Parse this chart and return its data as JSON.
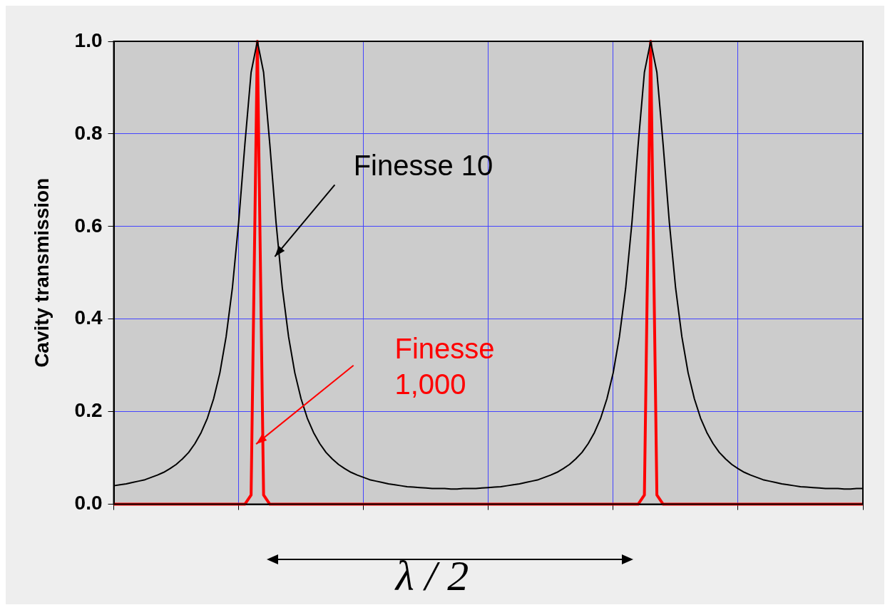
{
  "chart_data": {
    "type": "line",
    "ylabel": "Cavity transmission",
    "categories": [
      null,
      null,
      null,
      null,
      null,
      null,
      null,
      null,
      null,
      null,
      null,
      null,
      null,
      null,
      null,
      null,
      null,
      null,
      null,
      null,
      null,
      null,
      null,
      null,
      null,
      null,
      null,
      null,
      null,
      null,
      null,
      null,
      null,
      null,
      null,
      null,
      null,
      null,
      null,
      null,
      null,
      null,
      null,
      null,
      null,
      null,
      null,
      null,
      null,
      null,
      null,
      null,
      null,
      null,
      null,
      null,
      null,
      null,
      null,
      null,
      null,
      null,
      null,
      null,
      null,
      null,
      null,
      null,
      null,
      null,
      null,
      null,
      null,
      null,
      null,
      null,
      null,
      null,
      null,
      null,
      null,
      null,
      null,
      null,
      null,
      null,
      null,
      null,
      null,
      null,
      null,
      null,
      null,
      null,
      null,
      null,
      null,
      null,
      null,
      null,
      null,
      null,
      null,
      null,
      null,
      null,
      null,
      null,
      null,
      null,
      null,
      null,
      null,
      null,
      null,
      null,
      null,
      null,
      null,
      null,
      null
    ],
    "series": [
      {
        "color": "#000000",
        "values": [
          0.04,
          0.042,
          0.044,
          0.047,
          0.05,
          0.053,
          0.058,
          0.063,
          0.069,
          0.077,
          0.086,
          0.098,
          0.112,
          0.131,
          0.155,
          0.186,
          0.228,
          0.284,
          0.362,
          0.467,
          0.608,
          0.777,
          0.933,
          1.0,
          0.933,
          0.777,
          0.608,
          0.467,
          0.362,
          0.284,
          0.228,
          0.186,
          0.155,
          0.131,
          0.112,
          0.098,
          0.086,
          0.077,
          0.069,
          0.063,
          0.058,
          0.053,
          0.05,
          0.047,
          0.044,
          0.042,
          0.04,
          0.038,
          0.037,
          0.036,
          0.035,
          0.034,
          0.034,
          0.034,
          0.033,
          0.033,
          0.034,
          0.034,
          0.034,
          0.035,
          0.036,
          0.037,
          0.038,
          0.04,
          0.042,
          0.044,
          0.047,
          0.05,
          0.053,
          0.058,
          0.063,
          0.069,
          0.077,
          0.086,
          0.098,
          0.112,
          0.131,
          0.155,
          0.186,
          0.228,
          0.284,
          0.362,
          0.467,
          0.608,
          0.777,
          0.933,
          1.0,
          0.933,
          0.777,
          0.608,
          0.467,
          0.362,
          0.284,
          0.228,
          0.186,
          0.155,
          0.131,
          0.112,
          0.098,
          0.086,
          0.077,
          0.069,
          0.063,
          0.058,
          0.053,
          0.05,
          0.047,
          0.044,
          0.042,
          0.04,
          0.038,
          0.037,
          0.036,
          0.035,
          0.034,
          0.034,
          0.034,
          0.033,
          0.033,
          0.034,
          0.034
        ]
      },
      {
        "color": "#ff0000",
        "values": [
          0,
          0,
          0,
          0,
          0,
          0,
          0,
          0,
          0,
          0,
          0,
          0,
          0,
          0,
          0,
          0,
          0,
          0,
          0,
          0,
          0,
          0,
          0.02,
          1.0,
          0.02,
          0,
          0,
          0,
          0,
          0,
          0,
          0,
          0,
          0,
          0,
          0,
          0,
          0,
          0,
          0,
          0,
          0,
          0,
          0,
          0,
          0,
          0,
          0,
          0,
          0,
          0,
          0,
          0,
          0,
          0,
          0,
          0,
          0,
          0,
          0,
          0,
          0,
          0,
          0,
          0,
          0,
          0,
          0,
          0,
          0,
          0,
          0,
          0,
          0,
          0,
          0,
          0,
          0,
          0,
          0,
          0,
          0,
          0,
          0,
          0,
          0.02,
          1.0,
          0.02,
          0,
          0,
          0,
          0,
          0,
          0,
          0,
          0,
          0,
          0,
          0,
          0,
          0,
          0,
          0,
          0,
          0,
          0,
          0,
          0,
          0,
          0,
          0,
          0,
          0,
          0,
          0,
          0,
          0,
          0,
          0,
          0,
          0
        ]
      }
    ],
    "ylim": [
      0,
      1
    ],
    "yticks": [
      {
        "value": 0,
        "label": "0.0"
      },
      {
        "value": 0.2,
        "label": "0.2"
      },
      {
        "value": 0.4,
        "label": "0.4"
      },
      {
        "value": 0.6,
        "label": "0.6"
      },
      {
        "value": 0.8,
        "label": "0.8"
      },
      {
        "value": 1,
        "label": "1.0"
      }
    ],
    "grid": true,
    "marker": "none",
    "line_style": "solid",
    "annotations": [
      "Finesse 10",
      "Finesse\n1,000",
      "λ / 2"
    ]
  }
}
